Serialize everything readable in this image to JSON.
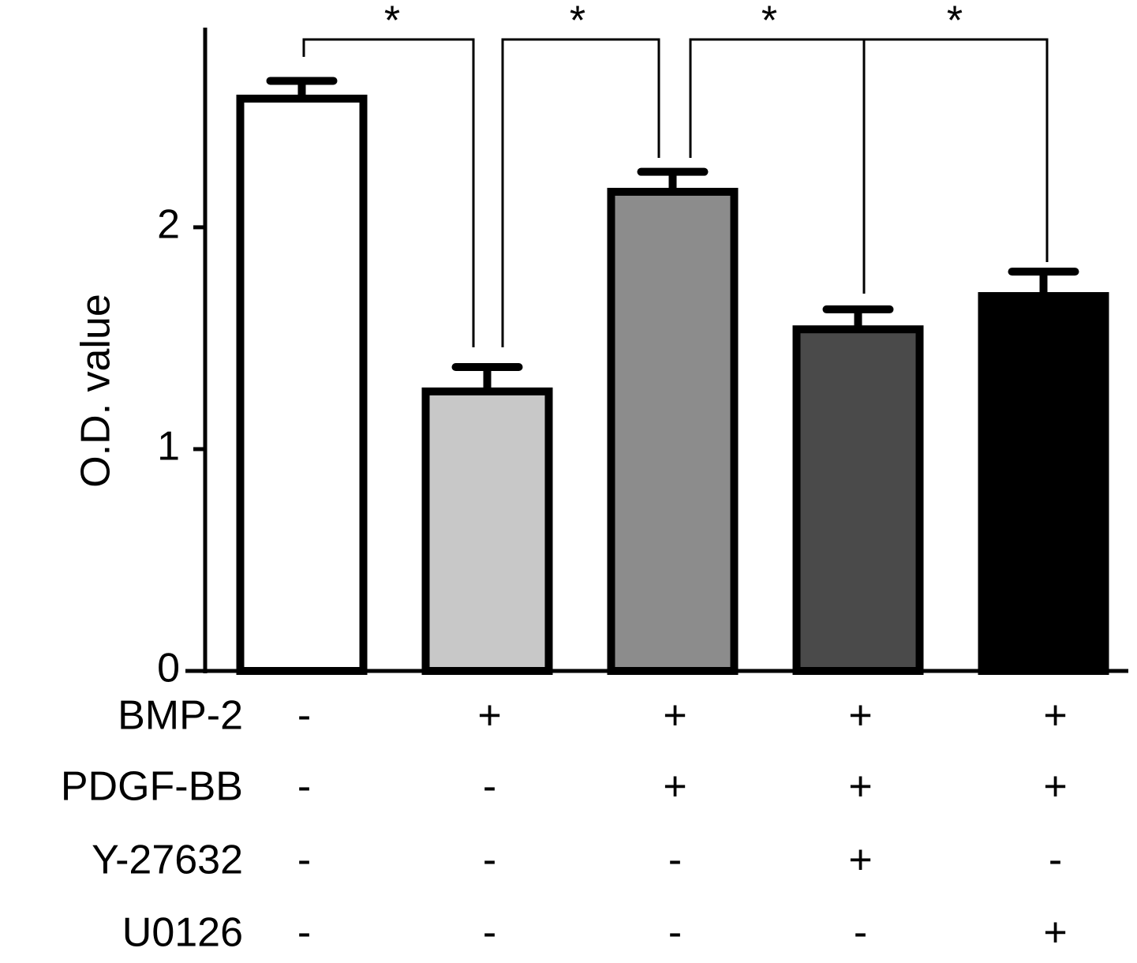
{
  "chart_data": {
    "type": "bar",
    "ylabel": "O.D. value",
    "categories": [
      null,
      null,
      null,
      null,
      null
    ],
    "values": [
      2.58,
      1.26,
      2.16,
      1.54,
      1.69
    ],
    "errors": [
      0.08,
      0.11,
      0.09,
      0.09,
      0.11
    ],
    "colors": [
      "#ffffff",
      "#c8c8c8",
      "#8c8c8c",
      "#4a4a4a",
      "#000000"
    ],
    "ylim": [
      0,
      2.9
    ],
    "yticks": [
      0,
      1,
      2
    ],
    "grid": false,
    "significance": [
      "*",
      "*",
      "*",
      "*"
    ],
    "treatments": [
      {
        "name": "BMP-2",
        "signs": [
          "-",
          "+",
          "+",
          "+",
          "+"
        ]
      },
      {
        "name": "PDGF-BB",
        "signs": [
          "-",
          "-",
          "+",
          "+",
          "+"
        ]
      },
      {
        "name": "Y-27632",
        "signs": [
          "-",
          "-",
          "-",
          "+",
          "-"
        ]
      },
      {
        "name": "U0126",
        "signs": [
          "-",
          "-",
          "-",
          "-",
          "+"
        ]
      }
    ]
  }
}
